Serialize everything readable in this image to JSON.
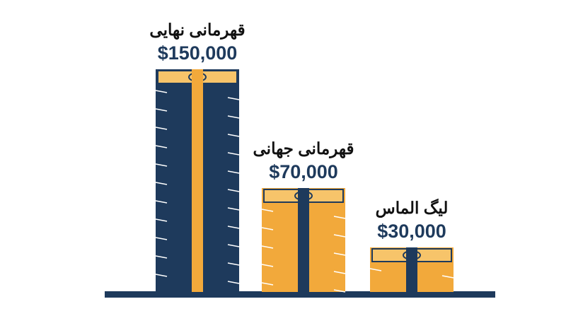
{
  "chart_data": {
    "type": "bar",
    "categories": [
      "قهرمانی نهایی",
      "قهرمانی جهانی",
      "لیگ الماس"
    ],
    "values": [
      150000,
      70000,
      30000
    ],
    "value_labels": [
      "$150,000",
      "$70,000",
      "$30,000"
    ],
    "colors": [
      "#1e3a5c",
      "#f2a93b",
      "#f2a93b"
    ],
    "ribbon_colors": [
      "#f2a93b",
      "#1e3a5c",
      "#1e3a5c"
    ]
  }
}
